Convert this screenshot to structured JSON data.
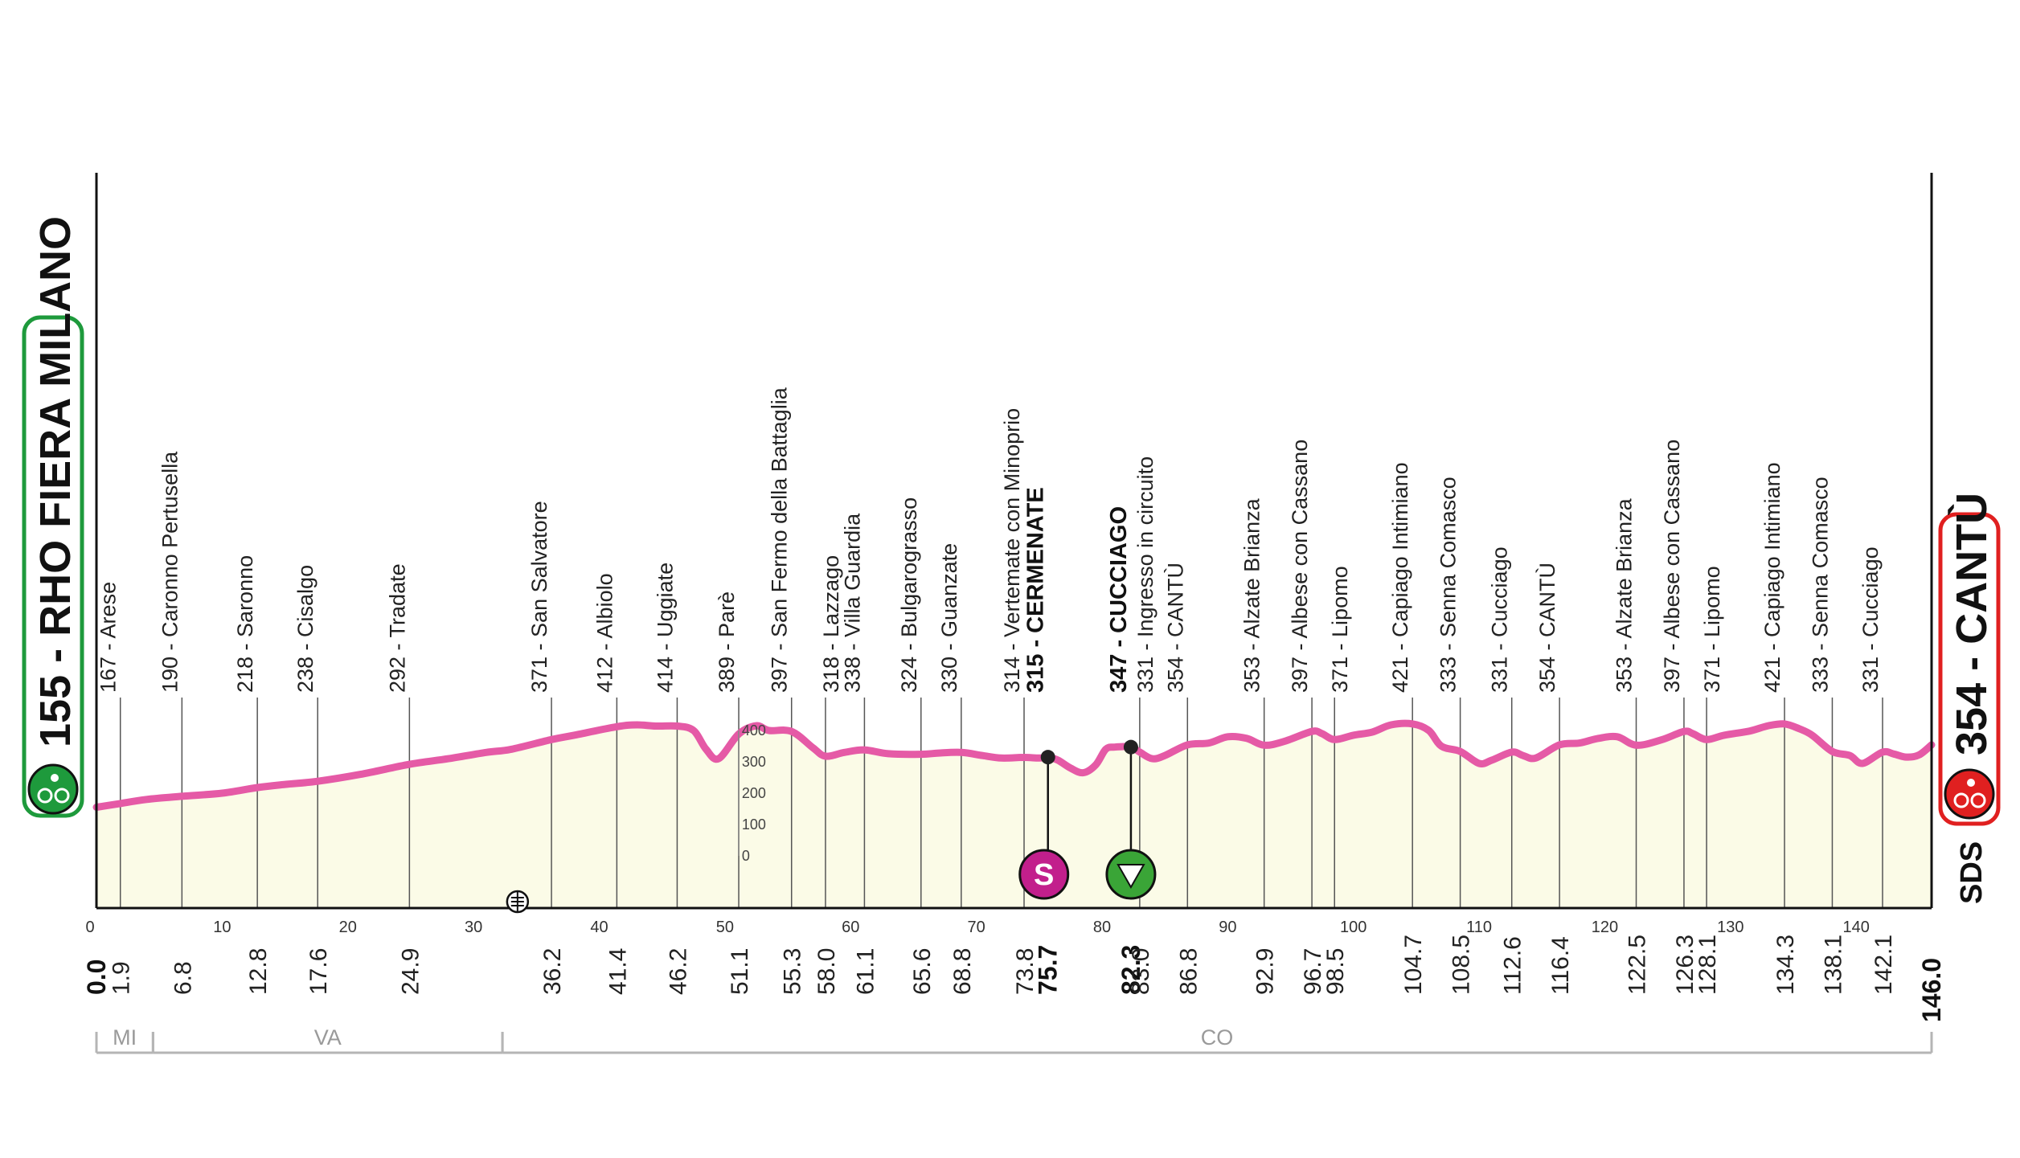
{
  "chart_data": {
    "type": "area",
    "xlim": [
      0,
      146
    ],
    "line_color": "#e55aa6",
    "fill_color": "#fbfbe7",
    "start": {
      "label": "155 - RHO FIERA MILANO",
      "altitude": 155,
      "name": "RHO FIERA MILANO",
      "color": "#1e9a3c"
    },
    "finish": {
      "label": "354 - CANTÙ",
      "altitude": 354,
      "name": "CANTÙ",
      "color": "#e02020"
    },
    "x_ticks": [
      0,
      10,
      20,
      30,
      40,
      50,
      60,
      70,
      80,
      90,
      100,
      110,
      120,
      130,
      140
    ],
    "alt_scale": [
      "400",
      "300",
      "200",
      "100",
      "0"
    ],
    "profile_x": [
      0,
      1.9,
      4,
      6.8,
      10,
      12.8,
      15,
      17.6,
      21,
      24.9,
      28,
      31,
      33,
      36.2,
      38,
      41.4,
      43,
      44.5,
      46.2,
      47.5,
      48.5,
      49.5,
      51.1,
      52.5,
      53.5,
      55.3,
      57,
      58,
      59.5,
      61.1,
      63,
      65.6,
      67,
      68.8,
      70.5,
      72,
      73.8,
      75,
      75.7,
      76.5,
      77.5,
      78.5,
      79.5,
      80.3,
      81,
      82.3,
      83,
      84,
      85,
      86.8,
      88.5,
      90,
      91.5,
      92.9,
      94.5,
      96.7,
      97.5,
      98.5,
      100,
      101.5,
      103,
      104.7,
      106,
      107,
      108.5,
      110,
      111,
      112.6,
      113.5,
      114.5,
      116.4,
      118,
      119.5,
      121,
      122.5,
      124.5,
      126.3,
      127,
      128.1,
      129.5,
      131.5,
      133,
      134.3,
      135.5,
      136.5,
      138.1,
      139.5,
      140.5,
      142.1,
      143,
      144,
      145,
      146
    ],
    "profile_alt": [
      155,
      167,
      180,
      190,
      200,
      218,
      228,
      238,
      260,
      292,
      310,
      330,
      340,
      371,
      385,
      412,
      418,
      414,
      414,
      400,
      340,
      310,
      389,
      415,
      400,
      397,
      345,
      318,
      330,
      338,
      326,
      324,
      328,
      330,
      320,
      312,
      314,
      312,
      315,
      305,
      280,
      265,
      290,
      340,
      347,
      347,
      331,
      310,
      320,
      354,
      360,
      380,
      375,
      353,
      365,
      397,
      390,
      371,
      385,
      395,
      418,
      421,
      400,
      350,
      333,
      295,
      305,
      331,
      320,
      312,
      354,
      360,
      375,
      380,
      353,
      370,
      397,
      390,
      371,
      385,
      398,
      415,
      421,
      405,
      385,
      333,
      320,
      295,
      331,
      325,
      315,
      322,
      354
    ],
    "labeled_points": [
      {
        "km": 1.9,
        "km_label": "1.9",
        "text": "167 - Arese",
        "bold": false,
        "side": "left"
      },
      {
        "km": 6.8,
        "km_label": "6.8",
        "text": "190 - Caronno Pertusella",
        "bold": false,
        "side": "left"
      },
      {
        "km": 12.8,
        "km_label": "12.8",
        "text": "218 - Saronno",
        "bold": false,
        "side": "left"
      },
      {
        "km": 17.6,
        "km_label": "17.6",
        "text": "238 - Cisalgo",
        "bold": false,
        "side": "left"
      },
      {
        "km": 24.9,
        "km_label": "24.9",
        "text": "292 - Tradate",
        "bold": false,
        "side": "left"
      },
      {
        "km": 36.2,
        "km_label": "36.2",
        "text": "371 - San Salvatore",
        "bold": false,
        "side": "left"
      },
      {
        "km": 41.4,
        "km_label": "41.4",
        "text": "412 - Albiolo",
        "bold": false,
        "side": "left"
      },
      {
        "km": 46.2,
        "km_label": "46.2",
        "text": "414 - Uggiate",
        "bold": false,
        "side": "left"
      },
      {
        "km": 51.1,
        "km_label": "51.1",
        "text": "389 - Parè",
        "bold": false,
        "side": "left"
      },
      {
        "km": 55.3,
        "km_label": "55.3",
        "text": "397 - San Fermo della Battaglia",
        "bold": false,
        "side": "left"
      },
      {
        "km": 58.0,
        "km_label": "58.0",
        "text": "318 - Lazzago",
        "bold": false,
        "side": "right"
      },
      {
        "km": 61.1,
        "km_label": "61.1",
        "text": "338 - Villa Guardia",
        "bold": false,
        "side": "left"
      },
      {
        "km": 65.6,
        "km_label": "65.6",
        "text": "324 - Bulgarograsso",
        "bold": false,
        "side": "left"
      },
      {
        "km": 68.8,
        "km_label": "68.8",
        "text": "330 - Guanzate",
        "bold": false,
        "side": "left"
      },
      {
        "km": 73.8,
        "km_label": "73.8",
        "text": "314 - Vertemate con Minoprio",
        "bold": false,
        "side": "left"
      },
      {
        "km": 75.7,
        "km_label": "75.7",
        "text": "315 - CERMENATE",
        "bold": true,
        "side": "left"
      },
      {
        "km": 82.3,
        "km_label": "82.3",
        "text": "347 - CUCCIAGO",
        "bold": true,
        "side": "left"
      },
      {
        "km": 83.0,
        "km_label": "83.0",
        "text": "331 - Ingresso in circuito",
        "bold": false,
        "side": "right"
      },
      {
        "km": 86.8,
        "km_label": "86.8",
        "text": "354 - CANTÙ",
        "bold": false,
        "side": "left"
      },
      {
        "km": 92.9,
        "km_label": "92.9",
        "text": "353 - Alzate Brianza",
        "bold": false,
        "side": "left"
      },
      {
        "km": 96.7,
        "km_label": "96.7",
        "text": "397 - Albese con Cassano",
        "bold": false,
        "side": "left"
      },
      {
        "km": 98.5,
        "km_label": "98.5",
        "text": "371 - Lipomo",
        "bold": false,
        "side": "right"
      },
      {
        "km": 104.7,
        "km_label": "104.7",
        "text": "421 - Capiago Intimiano",
        "bold": false,
        "side": "left"
      },
      {
        "km": 108.5,
        "km_label": "108.5",
        "text": "333 - Senna Comasco",
        "bold": false,
        "side": "left"
      },
      {
        "km": 112.6,
        "km_label": "112.6",
        "text": "331 - Cucciago",
        "bold": false,
        "side": "left"
      },
      {
        "km": 116.4,
        "km_label": "116.4",
        "text": "354 - CANTÙ",
        "bold": false,
        "side": "left"
      },
      {
        "km": 122.5,
        "km_label": "122.5",
        "text": "353 - Alzate Brianza",
        "bold": false,
        "side": "left"
      },
      {
        "km": 126.3,
        "km_label": "126.3",
        "text": "397 - Albese con Cassano",
        "bold": false,
        "side": "left"
      },
      {
        "km": 128.1,
        "km_label": "128.1",
        "text": "371 - Lipomo",
        "bold": false,
        "side": "right"
      },
      {
        "km": 134.3,
        "km_label": "134.3",
        "text": "421 - Capiago Intimiano",
        "bold": false,
        "side": "left"
      },
      {
        "km": 138.1,
        "km_label": "138.1",
        "text": "333 - Senna Comasco",
        "bold": false,
        "side": "left"
      },
      {
        "km": 142.1,
        "km_label": "142.1",
        "text": "331 - Cucciago",
        "bold": false,
        "side": "left"
      }
    ],
    "start_km_label": "0.0",
    "finish_km_label": "146.0",
    "markers": [
      {
        "type": "sprint",
        "km": 75.7,
        "altitude": 315,
        "symbol": "S",
        "color": "#c21f8c"
      },
      {
        "type": "circuit-entry",
        "km": 82.3,
        "altitude": 347,
        "color": "#3aa537"
      },
      {
        "type": "rail-crossing",
        "km": 33.5
      }
    ],
    "regions": [
      {
        "name": "MI",
        "from": 0,
        "to": 4.5
      },
      {
        "name": "VA",
        "from": 4.5,
        "to": 32.3
      },
      {
        "name": "CO",
        "from": 32.3,
        "to": 146
      }
    ],
    "brand": "SDS"
  }
}
